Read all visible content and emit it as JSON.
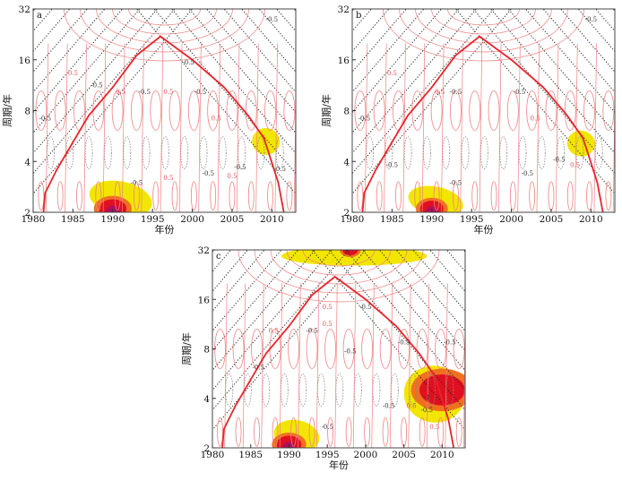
{
  "chart_data": [
    {
      "panel_label": "a",
      "type": "heatmap",
      "xlabel": "年份",
      "ylabel": "周期/年",
      "xlim": [
        1980,
        2013
      ],
      "ylim": [
        2,
        32
      ],
      "yscale": "log2",
      "xticks": [
        1980,
        1985,
        1990,
        1995,
        2000,
        2005,
        2010
      ],
      "yticks": [
        2,
        4,
        8,
        16,
        32
      ],
      "cone_of_influence": [
        [
          1981.3,
          2
        ],
        [
          1981.5,
          2.6
        ],
        [
          1983,
          3.6
        ],
        [
          1985,
          5.2
        ],
        [
          1987,
          7.5
        ],
        [
          1990,
          11
        ],
        [
          1993,
          17
        ],
        [
          1996,
          22
        ],
        [
          2000,
          16
        ],
        [
          2004,
          11
        ],
        [
          2007,
          7.5
        ],
        [
          2009,
          5.5
        ],
        [
          2010.8,
          3
        ],
        [
          2011.5,
          2
        ]
      ],
      "high_power_regions": [
        {
          "year_range": [
            1987,
            1995
          ],
          "period_range": [
            2,
            2.9
          ],
          "peak": [
            1990,
            2.1
          ],
          "level": "high"
        },
        {
          "year_range": [
            2007.5,
            2011
          ],
          "period_range": [
            4.6,
            6
          ],
          "peak": [
            2009.5,
            5.2
          ],
          "level": "moderate"
        }
      ],
      "contour_labels": [
        {
          "text": "0.5",
          "year": 1985,
          "period": 13
        },
        {
          "text": "-0.5",
          "year": 1988,
          "period": 11
        },
        {
          "text": "0.5",
          "year": 1991,
          "period": 10
        },
        {
          "text": "-0.5",
          "year": 1994,
          "period": 10
        },
        {
          "text": "0.5",
          "year": 1997,
          "period": 10
        },
        {
          "text": "-0.5",
          "year": 2001,
          "period": 10
        },
        {
          "text": "0.5",
          "year": 2003,
          "period": 7
        },
        {
          "text": "-0.5",
          "year": 1981.5,
          "period": 7
        },
        {
          "text": "-0.5",
          "year": 1993,
          "period": 2.9
        },
        {
          "text": "0.5",
          "year": 1997,
          "period": 3.1
        },
        {
          "text": "-0.5",
          "year": 2002,
          "period": 3.3
        },
        {
          "text": "-0.5",
          "year": 2006,
          "period": 3.6
        },
        {
          "text": "0.5",
          "year": 2005,
          "period": 3.6
        },
        {
          "text": "-0.5",
          "year": 2011,
          "period": 3.5
        },
        {
          "text": "-0.5",
          "year": 2010,
          "period": 27
        },
        {
          "text": "-0.5",
          "year": 1999.5,
          "period": 15
        }
      ]
    },
    {
      "panel_label": "b",
      "type": "heatmap",
      "xlabel": "年份",
      "ylabel": "周期/年",
      "xlim": [
        1980,
        2013
      ],
      "ylim": [
        2,
        32
      ],
      "yscale": "log2",
      "xticks": [
        1980,
        1985,
        1990,
        1995,
        2000,
        2005,
        2010
      ],
      "yticks": [
        2,
        4,
        8,
        16,
        32
      ],
      "cone_of_influence": [
        [
          1981.3,
          2
        ],
        [
          1981.5,
          2.6
        ],
        [
          1983,
          3.6
        ],
        [
          1985,
          5.2
        ],
        [
          1987,
          7.5
        ],
        [
          1990,
          11
        ],
        [
          1993,
          17
        ],
        [
          1996,
          22
        ],
        [
          2000,
          16
        ],
        [
          2004,
          11
        ],
        [
          2007,
          7.5
        ],
        [
          2009,
          5.5
        ],
        [
          2010.8,
          3
        ],
        [
          2011.5,
          2
        ]
      ],
      "high_power_regions": [
        {
          "year_range": [
            1987,
            1994
          ],
          "period_range": [
            2,
            2.7
          ],
          "peak": [
            1990,
            2.1
          ],
          "level": "high"
        },
        {
          "year_range": [
            2007,
            2010.5
          ],
          "period_range": [
            4.5,
            5.8
          ],
          "peak": [
            2009,
            5
          ],
          "level": "moderate"
        }
      ],
      "contour_labels": [
        {
          "text": "0.5",
          "year": 1985,
          "period": 13
        },
        {
          "text": "-0.5",
          "year": 1993,
          "period": 10
        },
        {
          "text": "0.5",
          "year": 1991,
          "period": 10
        },
        {
          "text": "-0.5",
          "year": 2001,
          "period": 10
        },
        {
          "text": "-0.5",
          "year": 1981.5,
          "period": 7
        },
        {
          "text": "-0.5",
          "year": 1985,
          "period": 3.7
        },
        {
          "text": "-0.5",
          "year": 1993,
          "period": 2.9
        },
        {
          "text": "-0.5",
          "year": 2002,
          "period": 3.3
        },
        {
          "text": "-0.5",
          "year": 2006,
          "period": 4
        },
        {
          "text": "-0.5",
          "year": 2010,
          "period": 27
        },
        {
          "text": "0.5",
          "year": 2003,
          "period": 7
        },
        {
          "text": "0.5",
          "year": 2008,
          "period": 3.7
        }
      ]
    },
    {
      "panel_label": "c",
      "type": "heatmap",
      "xlabel": "年份",
      "ylabel": "周期/年",
      "xlim": [
        1980,
        2013
      ],
      "ylim": [
        2,
        32
      ],
      "yscale": "log2",
      "xticks": [
        1980,
        1985,
        1990,
        1995,
        2000,
        2005,
        2010
      ],
      "yticks": [
        2,
        4,
        8,
        16,
        32
      ],
      "cone_of_influence": [
        [
          1981.3,
          2
        ],
        [
          1981.5,
          2.6
        ],
        [
          1983,
          3.6
        ],
        [
          1985,
          5.2
        ],
        [
          1987,
          7.5
        ],
        [
          1990,
          11
        ],
        [
          1993,
          17
        ],
        [
          1996,
          22
        ],
        [
          2000,
          16
        ],
        [
          2004,
          11
        ],
        [
          2007,
          7.5
        ],
        [
          2009,
          5.5
        ],
        [
          2010.8,
          3
        ],
        [
          2011.5,
          2
        ]
      ],
      "high_power_regions": [
        {
          "year_range": [
            1989,
            2008
          ],
          "period_range": [
            27,
            32
          ],
          "peak": [
            1998,
            32
          ],
          "level": "high"
        },
        {
          "year_range": [
            1988,
            1994
          ],
          "period_range": [
            2,
            2.8
          ],
          "peak": [
            1990,
            2.1
          ],
          "level": "high"
        },
        {
          "year_range": [
            2005,
            2013
          ],
          "period_range": [
            3,
            6
          ],
          "peak": [
            2010,
            4.5
          ],
          "level": "high"
        }
      ],
      "contour_labels": [
        {
          "text": "0.5",
          "year": 1995,
          "period": 14
        },
        {
          "text": "-0.5",
          "year": 2000,
          "period": 14
        },
        {
          "text": "0.5",
          "year": 1995,
          "period": 11
        },
        {
          "text": "0.5",
          "year": 1988,
          "period": 10
        },
        {
          "text": "-0.5",
          "year": 1993,
          "period": 10
        },
        {
          "text": "-0.5",
          "year": 1998,
          "period": 7.5
        },
        {
          "text": "-0.5",
          "year": 1986,
          "period": 6
        },
        {
          "text": "-0.5",
          "year": 2005,
          "period": 8.5
        },
        {
          "text": "-0.5",
          "year": 2011,
          "period": 8.5
        },
        {
          "text": "-0.5",
          "year": 2003,
          "period": 3.5
        },
        {
          "text": "-0.5",
          "year": 1995,
          "period": 2.6
        },
        {
          "text": "0.5",
          "year": 2006,
          "period": 3.5
        },
        {
          "text": "-0.5",
          "year": 2008,
          "period": 3.3
        },
        {
          "text": "-1",
          "year": 2008,
          "period": 3.7
        },
        {
          "text": "0.5",
          "year": 2009,
          "period": 2.6
        }
      ]
    }
  ],
  "colors": {
    "coi": "#e8242b",
    "positive_contour": "#f08080",
    "negative_contour": "#555555",
    "power_low": "#f2e600",
    "power_mid": "#f07020",
    "power_high": "#e01020",
    "power_peak": "#b0105a"
  }
}
